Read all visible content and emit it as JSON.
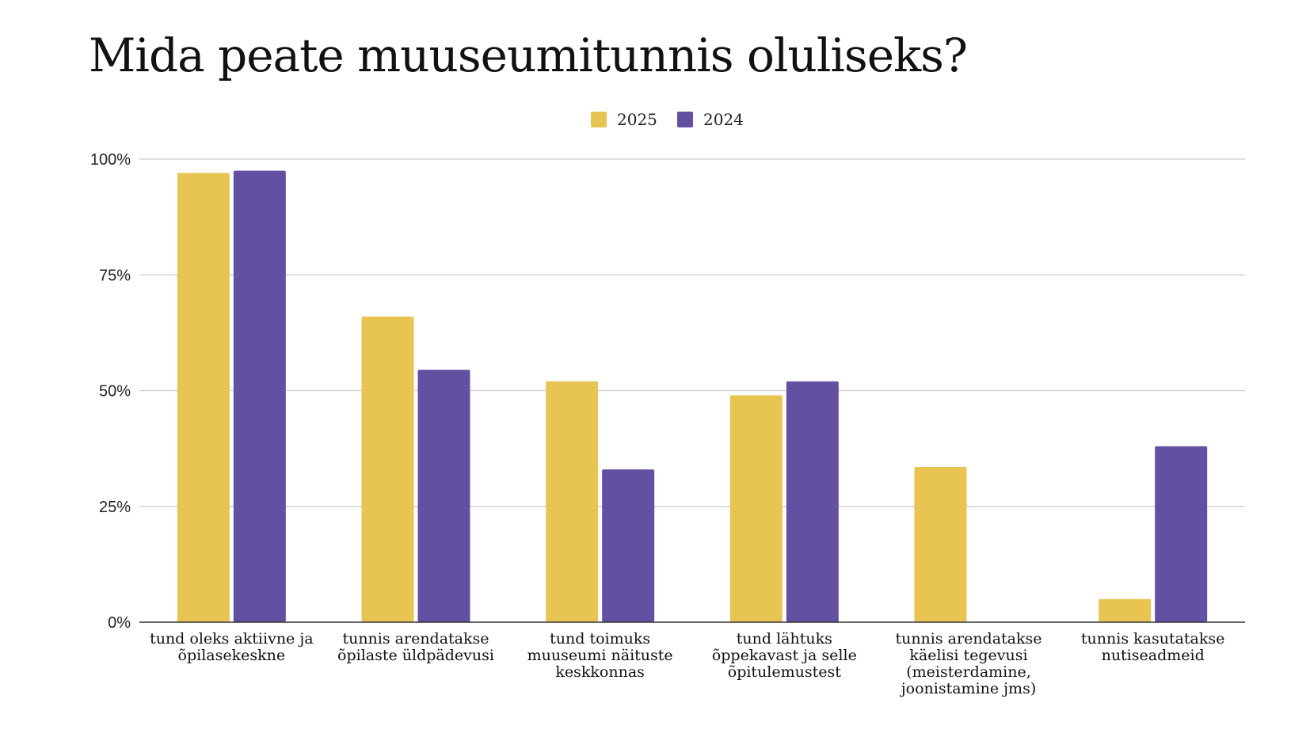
{
  "chart_data": {
    "type": "bar",
    "title": "Mida peate muuseumitunnis oluliseks?",
    "categories": [
      [
        "tund oleks aktiivne ja",
        "õpilasekeskne"
      ],
      [
        "tunnis arendatakse",
        "õpilaste üldpädevusi"
      ],
      [
        "tund toimuks",
        "muuseumi näituste",
        "keskkonnas"
      ],
      [
        "tund lähtuks",
        "õppekavast ja selle",
        "õpitulemustest"
      ],
      [
        "tunnis arendatakse",
        "käelisi tegevusi",
        "(meisterdamine,",
        "joonistamine jms)"
      ],
      [
        "tunnis kasutatakse",
        "nutiseadmeid"
      ]
    ],
    "series": [
      {
        "name": "2025",
        "color": "#E8C552",
        "values": [
          97,
          66,
          52,
          49,
          33.5,
          5
        ]
      },
      {
        "name": "2024",
        "color": "#6350A2",
        "values": [
          97.5,
          54.5,
          33,
          52,
          0,
          38
        ]
      }
    ],
    "ylim": [
      0,
      100
    ],
    "yticks": [
      0,
      25,
      50,
      75,
      100
    ],
    "ytick_labels": [
      "0%",
      "25%",
      "50%",
      "75%",
      "100%"
    ],
    "xlabel": "",
    "ylabel": "",
    "grid": true,
    "legend": "top-center"
  }
}
